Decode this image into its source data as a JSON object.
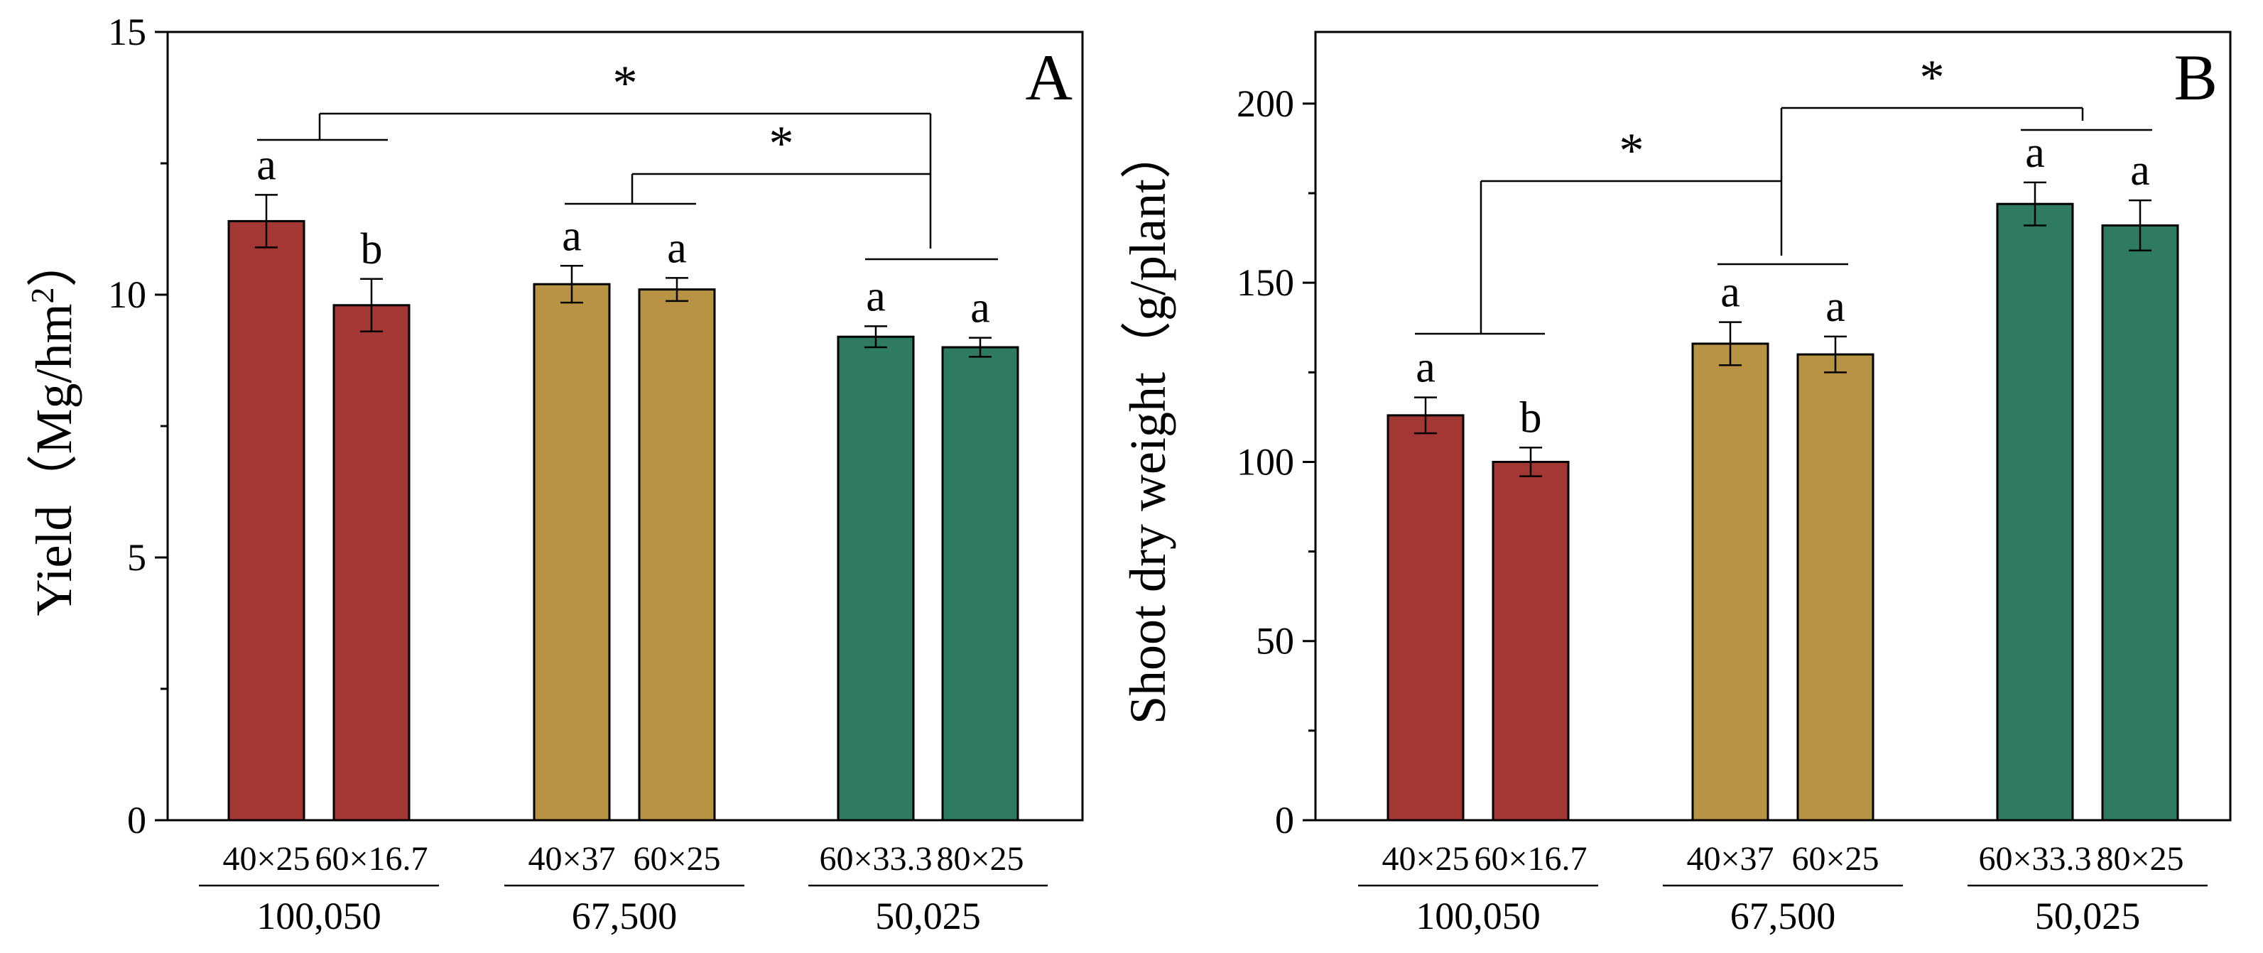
{
  "colors": {
    "100,050": "#A23734",
    "67,500": "#B89344",
    "50,025": "#2E7A62",
    "axis": "#000000"
  },
  "chart_data": [
    {
      "type": "bar",
      "panel": "A",
      "ylabel": "Yield（Mg/hm2）",
      "ylabel_parts": {
        "main": "Yield（Mg/hm",
        "sup": "2",
        "close": "）"
      },
      "ylim": [
        0,
        15
      ],
      "yticks": [
        0,
        5,
        10,
        15
      ],
      "categories": [
        "40×25",
        "60×16.7",
        "40×37",
        "60×25",
        "60×33.3",
        "80×25"
      ],
      "groups": [
        {
          "label": "100,050",
          "indices": [
            0,
            1
          ]
        },
        {
          "label": "67,500",
          "indices": [
            2,
            3
          ]
        },
        {
          "label": "50,025",
          "indices": [
            4,
            5
          ]
        }
      ],
      "values": [
        11.4,
        9.8,
        10.2,
        10.1,
        9.2,
        9.0
      ],
      "errors": [
        0.5,
        0.5,
        0.35,
        0.22,
        0.2,
        0.18
      ],
      "letters": [
        "a",
        "b",
        "a",
        "a",
        "a",
        "a"
      ],
      "significance": [
        {
          "label": "*",
          "from": "100,050",
          "to": "50,025"
        },
        {
          "label": "*",
          "from": "67,500",
          "to": "50,025"
        }
      ]
    },
    {
      "type": "bar",
      "panel": "B",
      "ylabel": "Shoot dry weight（g/plant）",
      "ylim": [
        0,
        220
      ],
      "yticks": [
        0,
        50,
        100,
        150,
        200
      ],
      "categories": [
        "40×25",
        "60×16.7",
        "40×37",
        "60×25",
        "60×33.3",
        "80×25"
      ],
      "groups": [
        {
          "label": "100,050",
          "indices": [
            0,
            1
          ]
        },
        {
          "label": "67,500",
          "indices": [
            2,
            3
          ]
        },
        {
          "label": "50,025",
          "indices": [
            4,
            5
          ]
        }
      ],
      "values": [
        113,
        100,
        133,
        130,
        172,
        166
      ],
      "errors": [
        5,
        4,
        6,
        5,
        6,
        7
      ],
      "letters": [
        "a",
        "b",
        "a",
        "a",
        "a",
        "a"
      ],
      "significance": [
        {
          "label": "*",
          "from": "100,050",
          "to": "67,500"
        },
        {
          "label": "*",
          "from": "67,500",
          "to": "50,025"
        }
      ]
    }
  ]
}
